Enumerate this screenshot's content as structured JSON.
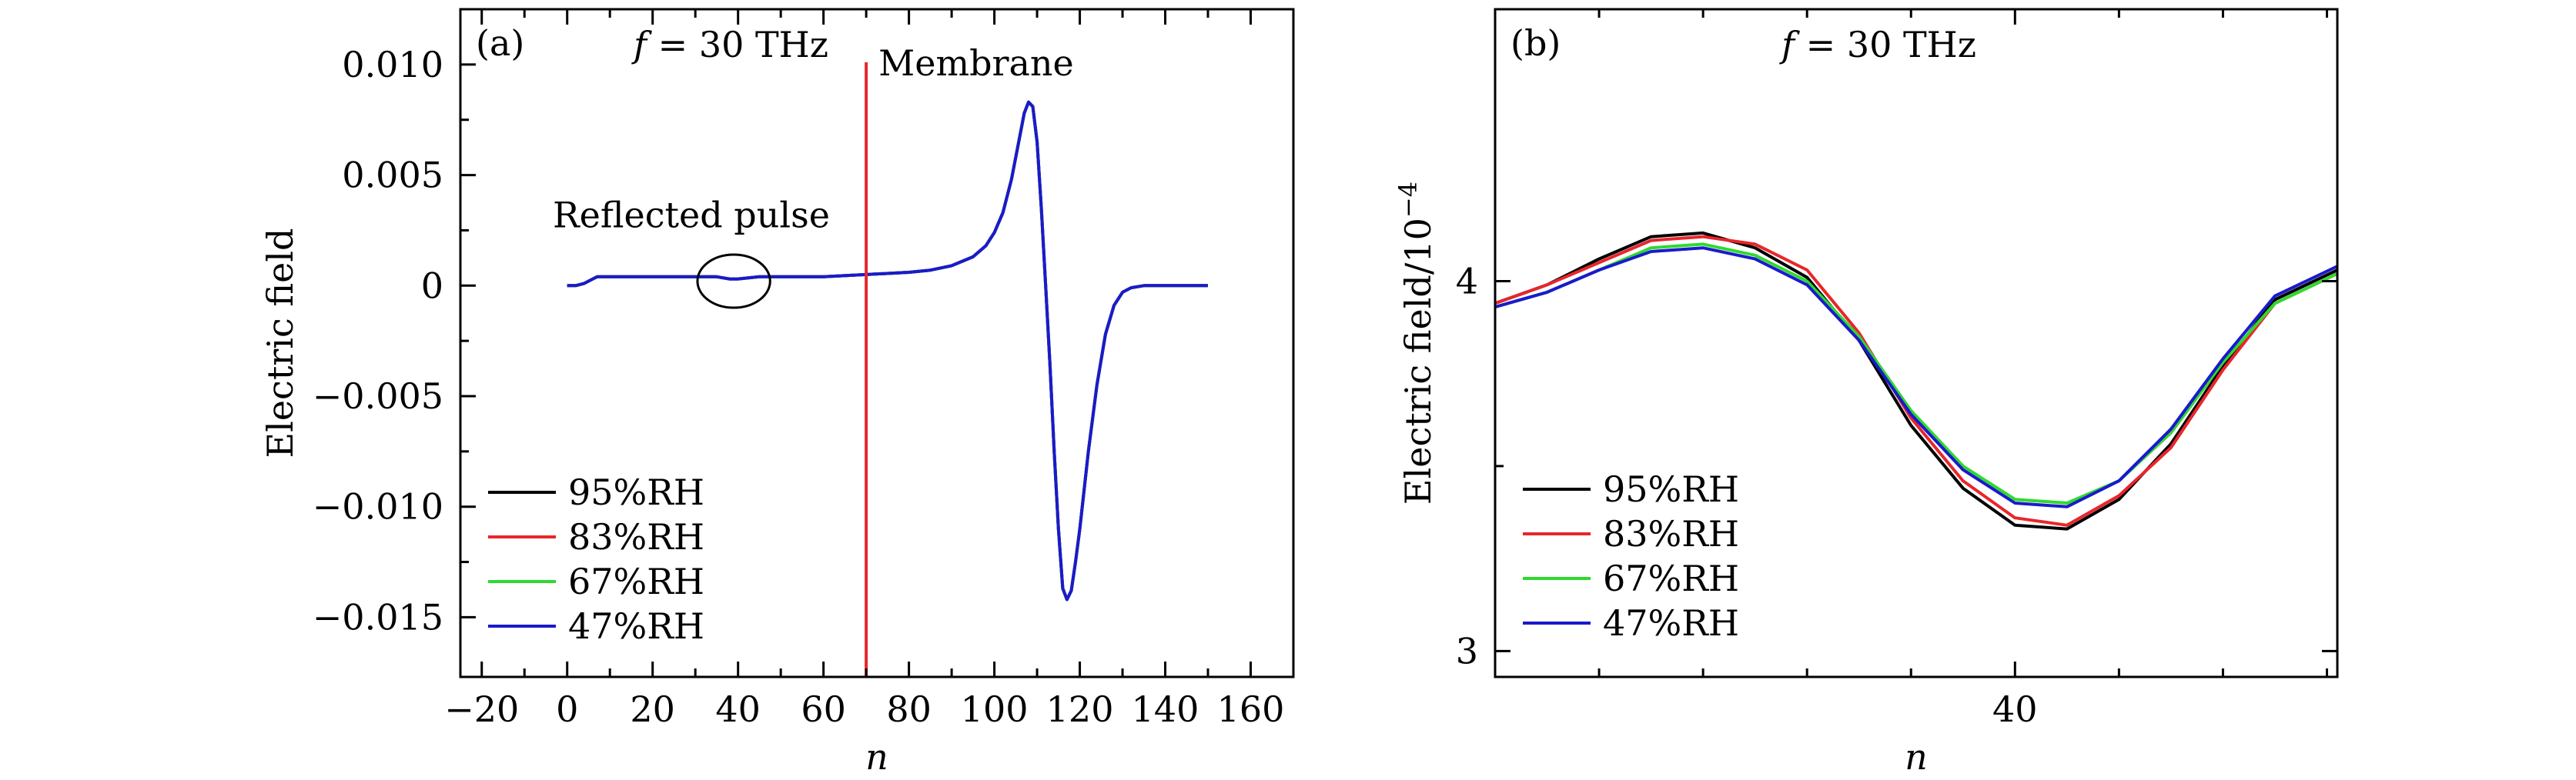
{
  "chart_data": [
    {
      "type": "line",
      "panel_label": "(a)",
      "title_var": "f",
      "title_eq": " = 30 THz",
      "xlabel": "n",
      "ylabel": "Electric field",
      "xlim": [
        -25,
        170
      ],
      "ylim": [
        -0.0177,
        0.0125
      ],
      "xticks": [
        -20,
        0,
        20,
        40,
        60,
        80,
        100,
        120,
        140,
        160
      ],
      "xtick_labels": [
        "−20",
        "0",
        "20",
        "40",
        "60",
        "80",
        "100",
        "120",
        "140",
        "160"
      ],
      "yticks": [
        0.01,
        0.005,
        0,
        -0.005,
        -0.01,
        -0.015
      ],
      "ytick_labels": [
        "0.010",
        "0.005",
        "0",
        "−0.005",
        "−0.010",
        "−0.015"
      ],
      "membrane": {
        "x": 70,
        "label": "Membrane",
        "color": "#e8262b"
      },
      "ellipse_annotation": {
        "label": "Reflected pulse",
        "x_center": 39,
        "y_center": 0.0002,
        "x_radius": 8.5,
        "y_radius": 0.0012
      },
      "x": [
        0,
        2,
        4,
        6,
        7,
        8,
        10,
        20,
        30,
        35,
        38,
        40,
        45,
        50,
        60,
        70,
        80,
        85,
        90,
        95,
        98,
        100,
        102,
        104,
        106,
        107,
        108,
        109,
        110,
        111,
        112,
        113,
        114,
        115,
        116,
        117,
        118,
        119,
        120,
        122,
        124,
        126,
        128,
        130,
        132,
        135,
        140,
        150
      ],
      "series": [
        {
          "name": "95%RH",
          "color": "#000000",
          "values": [
            0,
            0,
            0.0001,
            0.0003,
            0.0004,
            0.0004,
            0.0004,
            0.0004,
            0.0004,
            0.0004,
            0.0003,
            0.0003,
            0.0004,
            0.0004,
            0.0004,
            0.0005,
            0.0006,
            0.0007,
            0.0009,
            0.0013,
            0.0018,
            0.0024,
            0.0033,
            0.0048,
            0.0068,
            0.0078,
            0.0083,
            0.0081,
            0.0065,
            0.0035,
            0,
            -0.0035,
            -0.0075,
            -0.011,
            -0.0137,
            -0.0142,
            -0.0138,
            -0.0125,
            -0.011,
            -0.0075,
            -0.0045,
            -0.0022,
            -0.0009,
            -0.0003,
            -0.0001,
            0,
            0,
            0
          ]
        },
        {
          "name": "83%RH",
          "color": "#e8262b",
          "values": [
            0,
            0,
            0.0001,
            0.0003,
            0.0004,
            0.0004,
            0.0004,
            0.0004,
            0.0004,
            0.0004,
            0.0003,
            0.0003,
            0.0004,
            0.0004,
            0.0004,
            0.0005,
            0.0006,
            0.0007,
            0.0009,
            0.0013,
            0.0018,
            0.0024,
            0.0033,
            0.0048,
            0.0068,
            0.0078,
            0.0083,
            0.0081,
            0.0065,
            0.0035,
            0,
            -0.0035,
            -0.0075,
            -0.011,
            -0.0137,
            -0.0142,
            -0.0138,
            -0.0125,
            -0.011,
            -0.0075,
            -0.0045,
            -0.0022,
            -0.0009,
            -0.0003,
            -0.0001,
            0,
            0,
            0
          ]
        },
        {
          "name": "67%RH",
          "color": "#2fd92f",
          "values": [
            0,
            0,
            0.0001,
            0.0003,
            0.0004,
            0.0004,
            0.0004,
            0.0004,
            0.0004,
            0.0004,
            0.0003,
            0.0003,
            0.0004,
            0.0004,
            0.0004,
            0.0005,
            0.0006,
            0.0007,
            0.0009,
            0.0013,
            0.0018,
            0.0024,
            0.0033,
            0.0048,
            0.0068,
            0.0078,
            0.0083,
            0.0081,
            0.0065,
            0.0035,
            0,
            -0.0035,
            -0.0075,
            -0.011,
            -0.0137,
            -0.0142,
            -0.0138,
            -0.0125,
            -0.011,
            -0.0075,
            -0.0045,
            -0.0022,
            -0.0009,
            -0.0003,
            -0.0001,
            0,
            0,
            0
          ]
        },
        {
          "name": "47%RH",
          "color": "#1a1acc",
          "values": [
            0,
            0,
            0.0001,
            0.0003,
            0.0004,
            0.0004,
            0.0004,
            0.0004,
            0.0004,
            0.0004,
            0.0003,
            0.0003,
            0.0004,
            0.0004,
            0.0004,
            0.0005,
            0.0006,
            0.0007,
            0.0009,
            0.0013,
            0.0018,
            0.0024,
            0.0033,
            0.0048,
            0.0068,
            0.0078,
            0.0083,
            0.0081,
            0.0065,
            0.0035,
            0,
            -0.0035,
            -0.0075,
            -0.011,
            -0.0137,
            -0.0142,
            -0.0138,
            -0.0125,
            -0.011,
            -0.0075,
            -0.0045,
            -0.0022,
            -0.0009,
            -0.0003,
            -0.0001,
            0,
            0,
            0
          ]
        }
      ],
      "legend": {
        "position": "bottom-left",
        "entries": [
          "95%RH",
          "83%RH",
          "67%RH",
          "47%RH"
        ]
      }
    },
    {
      "type": "line",
      "panel_label": "(b)",
      "title_var": "f",
      "title_eq": " = 30 THz",
      "xlabel": "n",
      "ylabel_main": "Electric field/10",
      "ylabel_exp": "−4",
      "xlim": [
        30,
        46.2
      ],
      "ylim": [
        2.93,
        4.735
      ],
      "xticks": [
        40
      ],
      "xtick_labels": [
        "40"
      ],
      "yticks": [
        3,
        4
      ],
      "ytick_labels": [
        "3",
        "4"
      ],
      "x": [
        30,
        31,
        32,
        33,
        34,
        35,
        36,
        37,
        38,
        39,
        40,
        41,
        42,
        43,
        44,
        45,
        46.2
      ],
      "series": [
        {
          "name": "95%RH",
          "color": "#000000",
          "values": [
            3.94,
            3.99,
            4.06,
            4.12,
            4.13,
            4.09,
            4.01,
            3.84,
            3.61,
            3.44,
            3.34,
            3.33,
            3.41,
            3.56,
            3.77,
            3.95,
            4.03
          ]
        },
        {
          "name": "83%RH",
          "color": "#e8262b",
          "values": [
            3.94,
            3.99,
            4.05,
            4.11,
            4.12,
            4.1,
            4.03,
            3.86,
            3.63,
            3.46,
            3.36,
            3.34,
            3.42,
            3.55,
            3.76,
            3.94,
            4.02
          ]
        },
        {
          "name": "67%RH",
          "color": "#2fd92f",
          "values": [
            3.93,
            3.97,
            4.03,
            4.09,
            4.1,
            4.07,
            4.0,
            3.85,
            3.65,
            3.5,
            3.41,
            3.4,
            3.46,
            3.59,
            3.78,
            3.94,
            4.02
          ]
        },
        {
          "name": "47%RH",
          "color": "#1a1acc",
          "values": [
            3.93,
            3.97,
            4.03,
            4.08,
            4.09,
            4.06,
            3.99,
            3.84,
            3.64,
            3.49,
            3.4,
            3.39,
            3.46,
            3.6,
            3.79,
            3.96,
            4.04
          ]
        }
      ],
      "legend": {
        "position": "bottom-left",
        "entries": [
          "95%RH",
          "83%RH",
          "67%RH",
          "47%RH"
        ]
      }
    }
  ]
}
